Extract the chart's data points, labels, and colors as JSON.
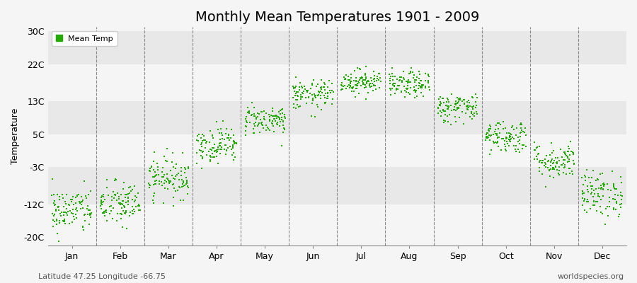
{
  "title": "Monthly Mean Temperatures 1901 - 2009",
  "ylabel": "Temperature",
  "xlabel_bottom_left": "Latitude 47.25 Longitude -66.75",
  "xlabel_bottom_right": "worldspecies.org",
  "legend_label": "Mean Temp",
  "dot_color": "#22aa00",
  "background_color": "#f5f5f5",
  "band_color_dark": "#e8e8e8",
  "band_color_light": "#f5f5f5",
  "yticks": [
    -20,
    -12,
    -3,
    5,
    13,
    22,
    30
  ],
  "ytick_labels": [
    "-20C",
    "-12C",
    "-3C",
    "5C",
    "13C",
    "22C",
    "30C"
  ],
  "ylim": [
    -22,
    31
  ],
  "monthly_means": [
    -13.5,
    -12.0,
    -5.5,
    2.5,
    8.5,
    14.5,
    17.8,
    17.0,
    11.5,
    4.5,
    -1.5,
    -9.5
  ],
  "monthly_stds": [
    2.8,
    2.8,
    2.5,
    2.2,
    1.8,
    1.8,
    1.5,
    1.6,
    1.8,
    2.0,
    2.2,
    2.8
  ],
  "n_years": 109,
  "month_names": [
    "Jan",
    "Feb",
    "Mar",
    "Apr",
    "May",
    "Jun",
    "Jul",
    "Aug",
    "Sep",
    "Oct",
    "Nov",
    "Dec"
  ],
  "xlim": [
    0,
    12
  ],
  "title_fontsize": 14,
  "axis_label_fontsize": 9,
  "tick_label_fontsize": 9,
  "legend_fontsize": 8,
  "watermark_fontsize": 8
}
